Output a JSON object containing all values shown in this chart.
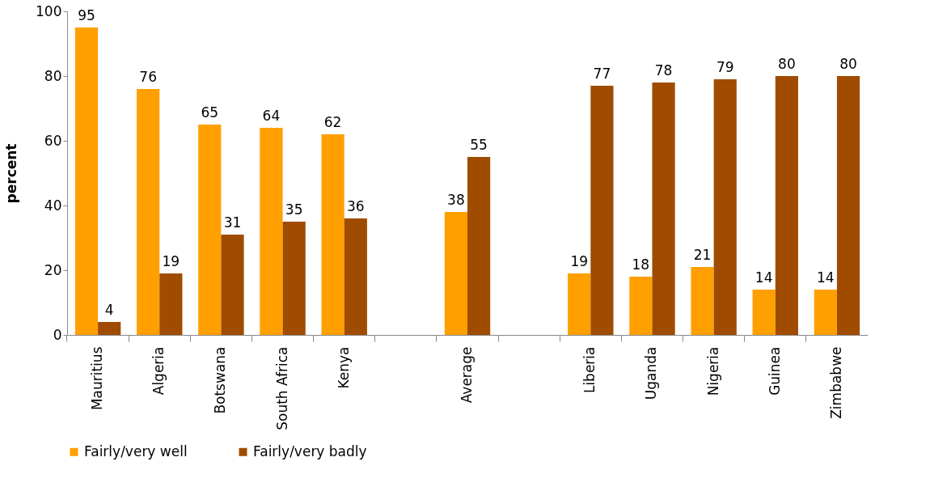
{
  "chart_data": {
    "type": "bar",
    "ylabel": "percent",
    "categories": [
      "Mauritius",
      "Algeria",
      "Botswana",
      "South Africa",
      "Kenya",
      null,
      "Average",
      null,
      "Liberia",
      "Uganda",
      "Nigeria",
      "Guinea",
      "Zimbabwe"
    ],
    "series": [
      {
        "name": "Fairly/very well",
        "color": "#ffa000",
        "values": [
          95,
          76,
          65,
          64,
          62,
          null,
          38,
          null,
          19,
          18,
          21,
          14,
          14
        ]
      },
      {
        "name": "Fairly/very badly",
        "color": "#a04c00",
        "values": [
          4,
          19,
          31,
          35,
          36,
          null,
          55,
          null,
          77,
          78,
          79,
          80,
          80
        ]
      }
    ],
    "ylim": [
      0,
      100
    ],
    "yticks": [
      0,
      20,
      40,
      60,
      80,
      100
    ],
    "grid": false,
    "legend": "bottom",
    "data_labels": true
  }
}
